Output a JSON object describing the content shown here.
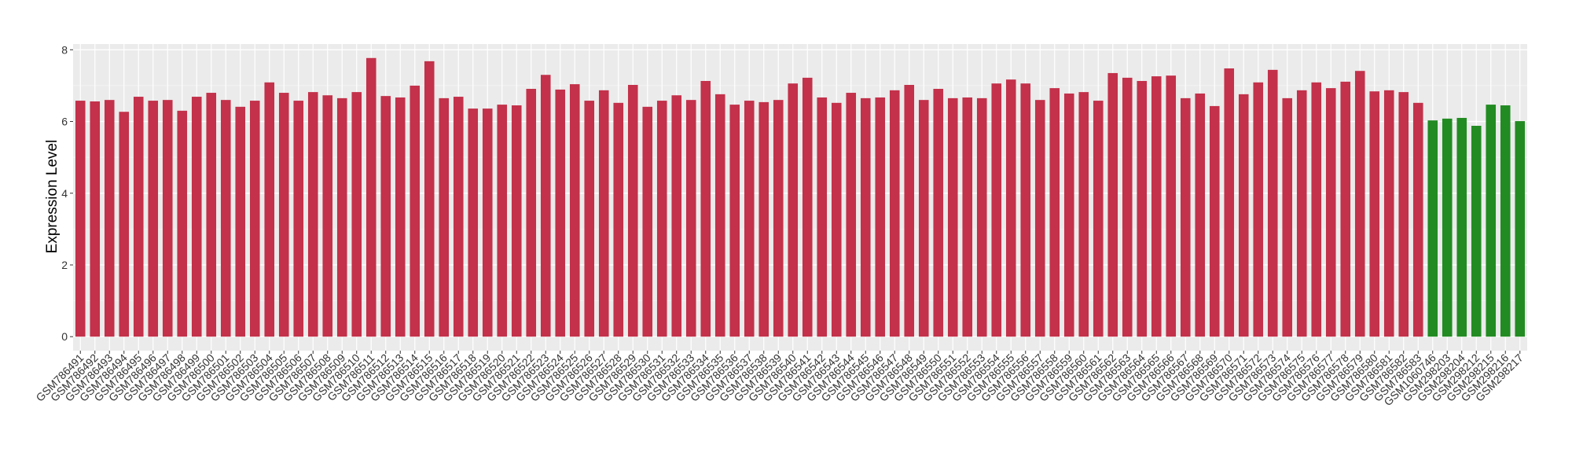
{
  "chart_data": {
    "type": "bar",
    "title": "",
    "xlabel": "",
    "ylabel": "Expression Level",
    "ylim": [
      -0.39,
      8.16
    ],
    "yticks": [
      0,
      2,
      4,
      6,
      8
    ],
    "grid": true,
    "legend": "none",
    "colors": {
      "group1": "#C3314A",
      "group2": "#228B22",
      "panel": "#EBEBEB",
      "grid": "#FFFFFF"
    },
    "categories": [
      "GSM786491",
      "GSM786492",
      "GSM786493",
      "GSM786494",
      "GSM786495",
      "GSM786496",
      "GSM786497",
      "GSM786498",
      "GSM786499",
      "GSM786500",
      "GSM786501",
      "GSM786502",
      "GSM786503",
      "GSM786504",
      "GSM786505",
      "GSM786506",
      "GSM786507",
      "GSM786508",
      "GSM786509",
      "GSM786510",
      "GSM786511",
      "GSM786512",
      "GSM786513",
      "GSM786514",
      "GSM786515",
      "GSM786516",
      "GSM786517",
      "GSM786518",
      "GSM786519",
      "GSM786520",
      "GSM786521",
      "GSM786522",
      "GSM786523",
      "GSM786524",
      "GSM786525",
      "GSM786526",
      "GSM786527",
      "GSM786528",
      "GSM786529",
      "GSM786530",
      "GSM786531",
      "GSM786532",
      "GSM786533",
      "GSM786534",
      "GSM786535",
      "GSM786536",
      "GSM786537",
      "GSM786538",
      "GSM786539",
      "GSM786540",
      "GSM786541",
      "GSM786542",
      "GSM786543",
      "GSM786544",
      "GSM786545",
      "GSM786546",
      "GSM786547",
      "GSM786548",
      "GSM786549",
      "GSM786550",
      "GSM786551",
      "GSM786552",
      "GSM786553",
      "GSM786554",
      "GSM786555",
      "GSM786556",
      "GSM786557",
      "GSM786558",
      "GSM786559",
      "GSM786560",
      "GSM786561",
      "GSM786562",
      "GSM786563",
      "GSM786564",
      "GSM786565",
      "GSM786566",
      "GSM786567",
      "GSM786568",
      "GSM786569",
      "GSM786570",
      "GSM786571",
      "GSM786572",
      "GSM786573",
      "GSM786574",
      "GSM786575",
      "GSM786576",
      "GSM786577",
      "GSM786578",
      "GSM786579",
      "GSM786580",
      "GSM786581",
      "GSM786582",
      "GSM786583",
      "GSM1060746",
      "GSM298203",
      "GSM298204",
      "GSM298212",
      "GSM298215",
      "GSM298216",
      "GSM298217"
    ],
    "values": [
      6.58,
      6.56,
      6.6,
      6.27,
      6.69,
      6.58,
      6.6,
      6.3,
      6.69,
      6.8,
      6.6,
      6.41,
      6.58,
      7.09,
      6.8,
      6.58,
      6.82,
      6.73,
      6.65,
      6.82,
      7.77,
      6.71,
      6.67,
      7.0,
      7.68,
      6.65,
      6.69,
      6.36,
      6.36,
      6.47,
      6.45,
      6.91,
      7.3,
      6.89,
      7.04,
      6.58,
      6.87,
      6.52,
      7.02,
      6.41,
      6.58,
      6.73,
      6.6,
      7.13,
      6.76,
      6.47,
      6.58,
      6.54,
      6.6,
      7.06,
      7.22,
      6.67,
      6.52,
      6.8,
      6.65,
      6.67,
      6.87,
      7.02,
      6.6,
      6.91,
      6.65,
      6.67,
      6.65,
      7.06,
      7.17,
      7.06,
      6.6,
      6.93,
      6.78,
      6.82,
      6.58,
      7.35,
      7.22,
      7.13,
      7.26,
      7.28,
      6.65,
      6.78,
      6.43,
      7.48,
      6.76,
      7.09,
      7.44,
      6.65,
      6.87,
      7.09,
      6.93,
      7.11,
      7.41,
      6.84,
      6.87,
      6.82,
      6.52,
      6.03,
      6.08,
      6.1,
      5.88,
      6.47,
      6.45,
      6.01
    ],
    "groups": [
      "group1",
      "group1",
      "group1",
      "group1",
      "group1",
      "group1",
      "group1",
      "group1",
      "group1",
      "group1",
      "group1",
      "group1",
      "group1",
      "group1",
      "group1",
      "group1",
      "group1",
      "group1",
      "group1",
      "group1",
      "group1",
      "group1",
      "group1",
      "group1",
      "group1",
      "group1",
      "group1",
      "group1",
      "group1",
      "group1",
      "group1",
      "group1",
      "group1",
      "group1",
      "group1",
      "group1",
      "group1",
      "group1",
      "group1",
      "group1",
      "group1",
      "group1",
      "group1",
      "group1",
      "group1",
      "group1",
      "group1",
      "group1",
      "group1",
      "group1",
      "group1",
      "group1",
      "group1",
      "group1",
      "group1",
      "group1",
      "group1",
      "group1",
      "group1",
      "group1",
      "group1",
      "group1",
      "group1",
      "group1",
      "group1",
      "group1",
      "group1",
      "group1",
      "group1",
      "group1",
      "group1",
      "group1",
      "group1",
      "group1",
      "group1",
      "group1",
      "group1",
      "group1",
      "group1",
      "group1",
      "group1",
      "group1",
      "group1",
      "group1",
      "group1",
      "group1",
      "group1",
      "group1",
      "group1",
      "group1",
      "group1",
      "group1",
      "group1",
      "group2",
      "group2",
      "group2",
      "group2",
      "group2",
      "group2",
      "group2"
    ]
  }
}
